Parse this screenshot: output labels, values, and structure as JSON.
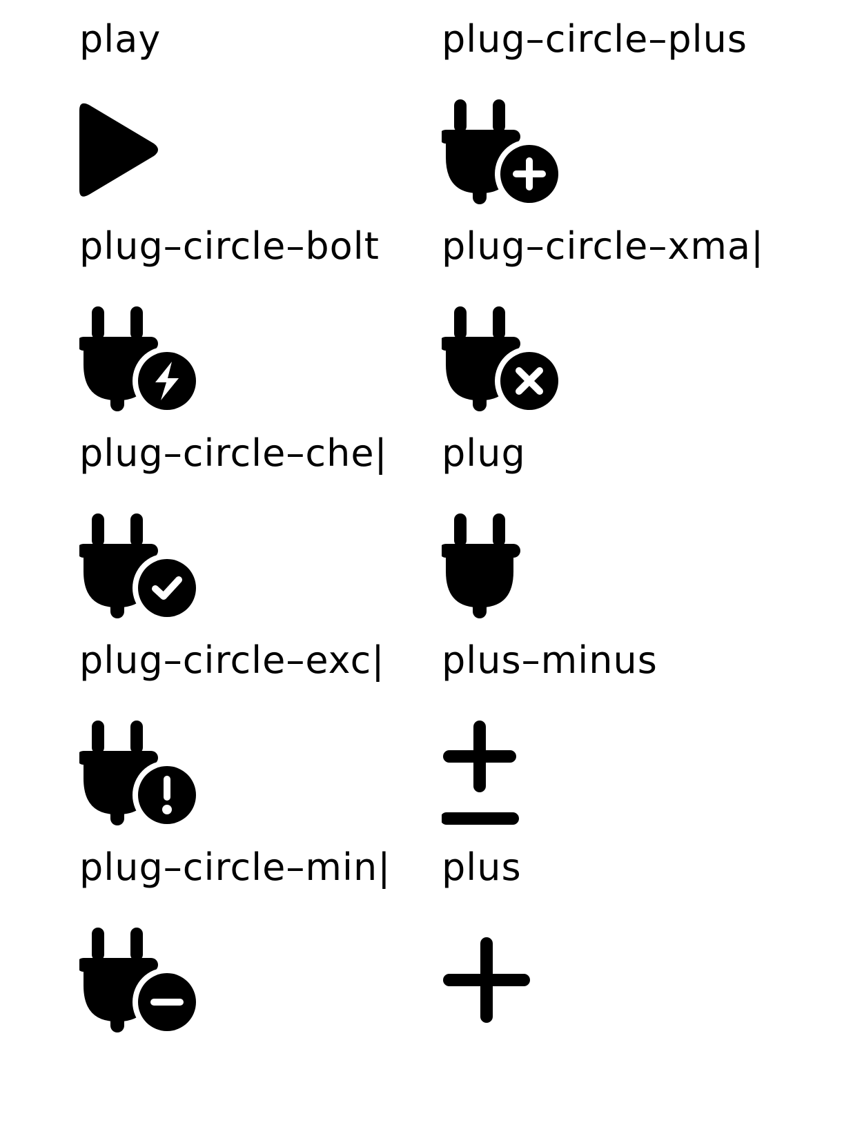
{
  "icons": [
    {
      "label": "play",
      "icon": "play-icon"
    },
    {
      "label": "plug–circle–plus",
      "icon": "plug-circle-plus-icon"
    },
    {
      "label": "plug–circle–bolt",
      "icon": "plug-circle-bolt-icon"
    },
    {
      "label": "plug–circle–xma|",
      "icon": "plug-circle-xmark-icon"
    },
    {
      "label": "plug–circle–che|",
      "icon": "plug-circle-check-icon"
    },
    {
      "label": "plug",
      "icon": "plug-icon"
    },
    {
      "label": "plug–circle–exc|",
      "icon": "plug-circle-exclamation-icon"
    },
    {
      "label": "plus–minus",
      "icon": "plus-minus-icon"
    },
    {
      "label": "plug–circle–min|",
      "icon": "plug-circle-minus-icon"
    },
    {
      "label": "plus",
      "icon": "plus-icon"
    }
  ],
  "colors": {
    "background": "#ffffff",
    "foreground": "#000000"
  }
}
